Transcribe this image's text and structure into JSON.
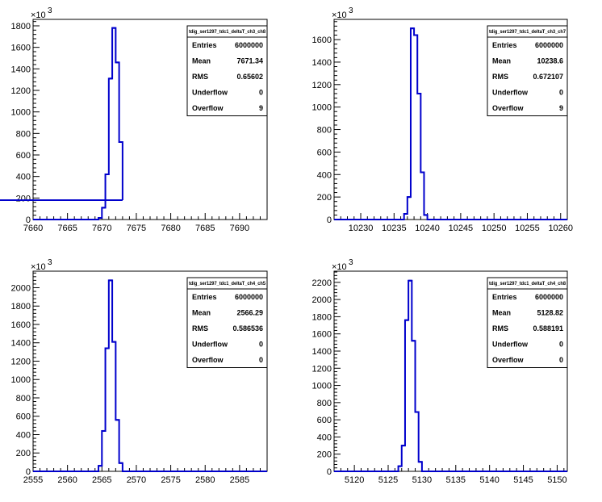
{
  "chart_data": [
    {
      "type": "histogram",
      "stats_title": "tdig_ser1297_tdc1_deltaT_ch3_ch8",
      "stats": {
        "Entries": "6000000",
        "Mean": "7671.34",
        "RMS": "0.65602",
        "Underflow": "0",
        "Overflow": "9"
      },
      "y_multiplier": "3",
      "xlim": [
        7660,
        7694
      ],
      "ylim": [
        0,
        1860
      ],
      "xticks": [
        "7660",
        "7665",
        "7670",
        "7675",
        "7680",
        "7685",
        "7690"
      ],
      "yticks": [
        "0",
        "200",
        "400",
        "600",
        "800",
        "1000",
        "1200",
        "1400",
        "1600",
        "1800"
      ],
      "bin_edges": [
        7669.5,
        7670,
        7670.5,
        7671,
        7671.5,
        7672,
        7672.5,
        7673
      ],
      "values": [
        15,
        110,
        420,
        1310,
        1780,
        1460,
        720,
        180
      ],
      "color": "#0000cc"
    },
    {
      "type": "histogram",
      "stats_title": "tdig_ser1297_tdc1_deltaT_ch3_ch7",
      "stats": {
        "Entries": "6000000",
        "Mean": "10238.6",
        "RMS": "0.672107",
        "Underflow": "0",
        "Overflow": "9"
      },
      "y_multiplier": "3",
      "xlim": [
        10226,
        10261
      ],
      "ylim": [
        0,
        1780
      ],
      "xticks": [
        "10230",
        "10235",
        "10240",
        "10245",
        "10250",
        "10255",
        "10260"
      ],
      "yticks": [
        "0",
        "200",
        "400",
        "600",
        "800",
        "1000",
        "1200",
        "1400",
        "1600"
      ],
      "bin_edges": [
        10236.5,
        10237,
        10237.5,
        10238,
        10238.5,
        10239,
        10239.5,
        10240
      ],
      "values": [
        50,
        200,
        1700,
        1640,
        1120,
        420,
        40
      ],
      "color": "#0000cc"
    },
    {
      "type": "histogram",
      "stats_title": "tdig_ser1297_tdc1_deltaT_ch4_ch5",
      "stats": {
        "Entries": "6000000",
        "Mean": "2566.29",
        "RMS": "0.586536",
        "Underflow": "0",
        "Overflow": "0"
      },
      "y_multiplier": "3",
      "xlim": [
        2555,
        2589
      ],
      "ylim": [
        0,
        2180
      ],
      "xticks": [
        "2555",
        "2560",
        "2565",
        "2570",
        "2575",
        "2580",
        "2585"
      ],
      "yticks": [
        "0",
        "200",
        "400",
        "600",
        "800",
        "1000",
        "1200",
        "1400",
        "1600",
        "1800",
        "2000"
      ],
      "bin_edges": [
        2564.5,
        2565,
        2565.5,
        2566,
        2566.5,
        2567,
        2567.5,
        2568
      ],
      "values": [
        60,
        440,
        1340,
        2080,
        1410,
        560,
        90
      ],
      "color": "#0000cc"
    },
    {
      "type": "histogram",
      "stats_title": "tdig_ser1297_tdc1_deltaT_ch4_ch8",
      "stats": {
        "Entries": "6000000",
        "Mean": "5128.82",
        "RMS": "0.588191",
        "Underflow": "0",
        "Overflow": "0"
      },
      "y_multiplier": "3",
      "xlim": [
        5117,
        5151.5
      ],
      "ylim": [
        0,
        2330
      ],
      "xticks": [
        "5120",
        "5125",
        "5130",
        "5135",
        "5140",
        "5145",
        "5150"
      ],
      "yticks": [
        "0",
        "200",
        "400",
        "600",
        "800",
        "1000",
        "1200",
        "1400",
        "1600",
        "1800",
        "2000",
        "2200"
      ],
      "bin_edges": [
        5126.5,
        5127,
        5127.5,
        5128,
        5128.5,
        5129,
        5129.5,
        5130
      ],
      "values": [
        60,
        300,
        1760,
        2220,
        1520,
        690,
        110
      ],
      "color": "#0000cc"
    }
  ]
}
